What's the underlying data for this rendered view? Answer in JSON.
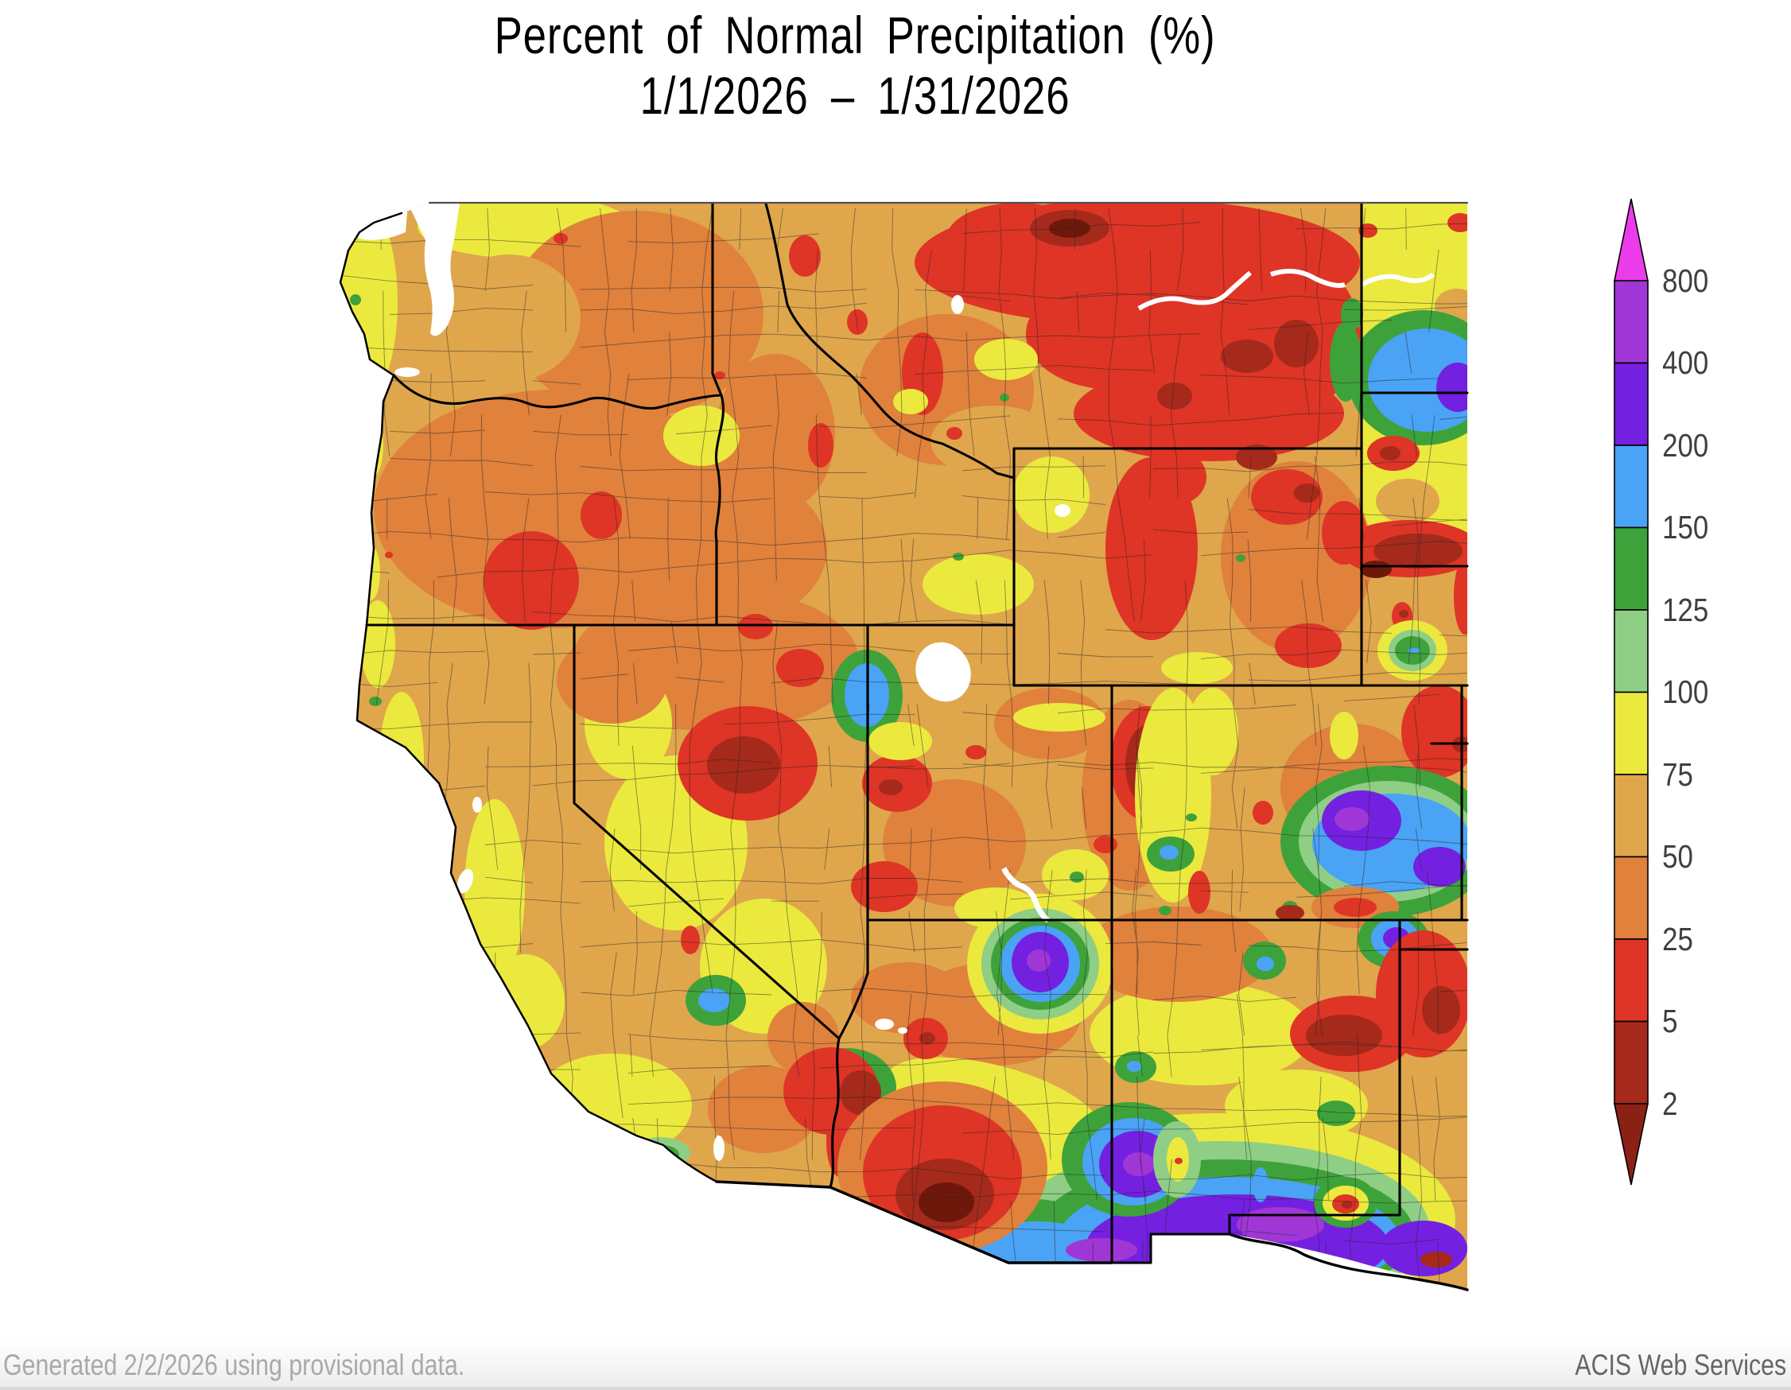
{
  "title": {
    "line1": "Percent of Normal Precipitation (%)",
    "line2": "1/1/2026 – 1/31/2026"
  },
  "footer": {
    "generated": "Generated 2/2/2026 using provisional data.",
    "service": "ACIS Web Services"
  },
  "colorbar": {
    "tick_labels": [
      "800",
      "400",
      "200",
      "150",
      "125",
      "100",
      "75",
      "50",
      "25",
      "5",
      "2"
    ],
    "segment_colors_top_to_bottom": [
      "#A136D6",
      "#7420E0",
      "#4AA3F5",
      "#3EA23B",
      "#8FCE85",
      "#EBE93E",
      "#DFA64C",
      "#E0813C",
      "#DE3526",
      "#A52A1B"
    ],
    "arrow_top_color": "#EC3BEA",
    "arrow_bottom_color": "#8B2114"
  },
  "map": {
    "region": "Western United States",
    "quantity": "Percent of Normal Precipitation",
    "palette": {
      "magenta": "#EC3BEA",
      "purple2": "#A136D6",
      "purple": "#7420E0",
      "blue": "#4AA3F5",
      "green": "#3EA23B",
      "lightgreen": "#8FCE85",
      "yellow": "#EBE93E",
      "tan": "#DFA64C",
      "orange": "#E0813C",
      "red": "#DE3526",
      "darkred": "#A52A1B",
      "maroon": "#8B2114",
      "below2": "#6E180C",
      "water": "#FFFFFF",
      "border": "#000000",
      "county": "#222222",
      "frame": "#4f4f4f"
    }
  }
}
